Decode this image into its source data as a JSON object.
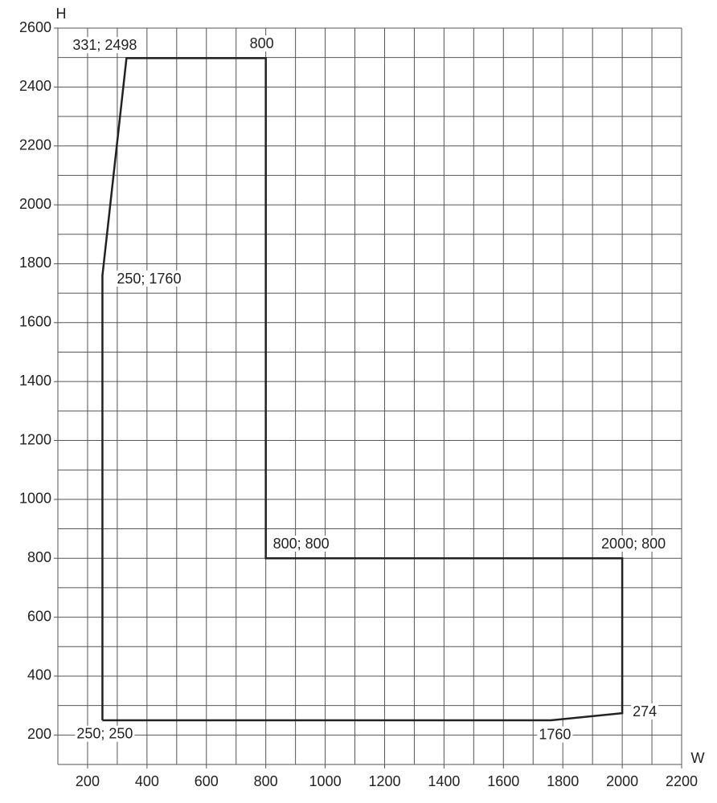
{
  "chart_data": {
    "type": "line",
    "x_label": "W",
    "y_label": "H",
    "xlim": [
      100,
      2200
    ],
    "ylim": [
      100,
      2600
    ],
    "xticks": [
      200,
      400,
      600,
      800,
      1000,
      1200,
      1400,
      1600,
      1800,
      2000,
      2200
    ],
    "yticks": [
      200,
      400,
      600,
      800,
      1000,
      1200,
      1400,
      1600,
      1800,
      2000,
      2200,
      2400,
      2600
    ],
    "x_grid": [
      100,
      200,
      300,
      400,
      500,
      600,
      700,
      800,
      900,
      1000,
      1100,
      1200,
      1300,
      1400,
      1500,
      1600,
      1700,
      1800,
      1900,
      2000,
      2100,
      2200
    ],
    "y_grid": [
      100,
      200,
      300,
      400,
      500,
      600,
      700,
      800,
      900,
      1000,
      1100,
      1200,
      1300,
      1400,
      1500,
      1600,
      1700,
      1800,
      1900,
      2000,
      2100,
      2200,
      2300,
      2400,
      2500,
      2600
    ],
    "series": [
      {
        "color": "#222222",
        "x": [
          250,
          250,
          331,
          800,
          800,
          2000,
          2000,
          1760,
          250
        ],
        "values": [
          250,
          1760,
          2498,
          2498,
          800,
          800,
          274,
          250,
          250
        ],
        "point_labels": [
          "250; 250",
          "250; 1760",
          "331; 2498",
          "800",
          "800; 800",
          "2000; 800",
          "274",
          "1760",
          null
        ]
      }
    ]
  }
}
